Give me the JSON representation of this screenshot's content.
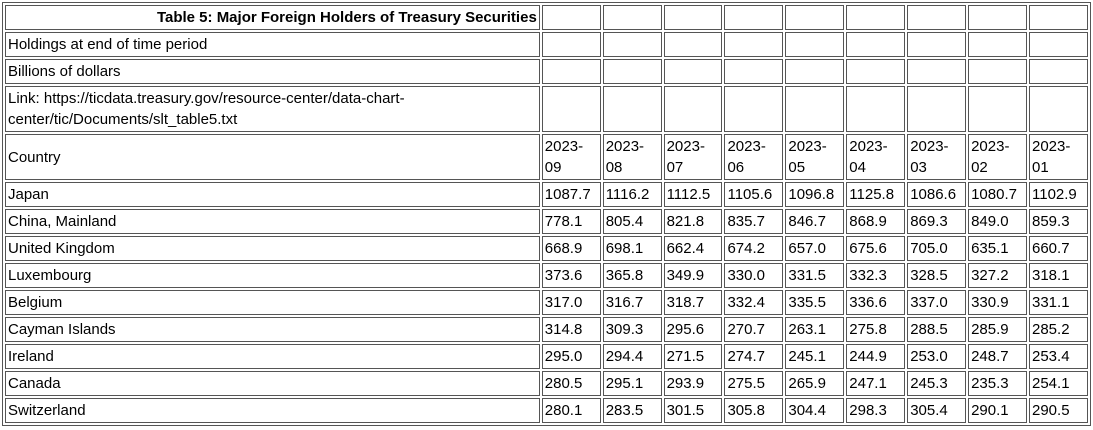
{
  "table": {
    "title": "Table 5: Major Foreign Holders of Treasury Securities",
    "subtitle_period": "Holdings at end of time period",
    "subtitle_units": "Billions of dollars",
    "source_link": "Link: https://ticdata.treasury.gov/resource-center/data-chart-center/tic/Documents/slt_table5.txt",
    "country_header": "Country",
    "periods": [
      "2023-09",
      "2023-08",
      "2023-07",
      "2023-06",
      "2023-05",
      "2023-04",
      "2023-03",
      "2023-02",
      "2023-01"
    ],
    "rows": [
      {
        "country": "Japan",
        "values": [
          "1087.7",
          "1116.2",
          "1112.5",
          "1105.6",
          "1096.8",
          "1125.8",
          "1086.6",
          "1080.7",
          "1102.9"
        ]
      },
      {
        "country": "China, Mainland",
        "values": [
          "778.1",
          "805.4",
          "821.8",
          "835.7",
          "846.7",
          "868.9",
          "869.3",
          "849.0",
          "859.3"
        ]
      },
      {
        "country": "United Kingdom",
        "values": [
          "668.9",
          "698.1",
          "662.4",
          "674.2",
          "657.0",
          "675.6",
          "705.0",
          "635.1",
          "660.7"
        ]
      },
      {
        "country": "Luxembourg",
        "values": [
          "373.6",
          "365.8",
          "349.9",
          "330.0",
          "331.5",
          "332.3",
          "328.5",
          "327.2",
          "318.1"
        ]
      },
      {
        "country": "Belgium",
        "values": [
          "317.0",
          "316.7",
          "318.7",
          "332.4",
          "335.5",
          "336.6",
          "337.0",
          "330.9",
          "331.1"
        ]
      },
      {
        "country": "Cayman Islands",
        "values": [
          "314.8",
          "309.3",
          "295.6",
          "270.7",
          "263.1",
          "275.8",
          "288.5",
          "285.9",
          "285.2"
        ]
      },
      {
        "country": "Ireland",
        "values": [
          "295.0",
          "294.4",
          "271.5",
          "274.7",
          "245.1",
          "244.9",
          "253.0",
          "248.7",
          "253.4"
        ]
      },
      {
        "country": "Canada",
        "values": [
          "280.5",
          "295.1",
          "293.9",
          "275.5",
          "265.9",
          "247.1",
          "245.3",
          "235.3",
          "254.1"
        ]
      },
      {
        "country": "Switzerland",
        "values": [
          "280.1",
          "283.5",
          "301.5",
          "305.8",
          "304.4",
          "298.3",
          "305.4",
          "290.1",
          "290.5"
        ]
      }
    ]
  },
  "chart_data": {
    "type": "table",
    "title": "Table 5: Major Foreign Holders of Treasury Securities",
    "categories": [
      "2023-09",
      "2023-08",
      "2023-07",
      "2023-06",
      "2023-05",
      "2023-04",
      "2023-03",
      "2023-02",
      "2023-01"
    ],
    "series": [
      {
        "name": "Japan",
        "values": [
          1087.7,
          1116.2,
          1112.5,
          1105.6,
          1096.8,
          1125.8,
          1086.6,
          1080.7,
          1102.9
        ]
      },
      {
        "name": "China, Mainland",
        "values": [
          778.1,
          805.4,
          821.8,
          835.7,
          846.7,
          868.9,
          869.3,
          849.0,
          859.3
        ]
      },
      {
        "name": "United Kingdom",
        "values": [
          668.9,
          698.1,
          662.4,
          674.2,
          657.0,
          675.6,
          705.0,
          635.1,
          660.7
        ]
      },
      {
        "name": "Luxembourg",
        "values": [
          373.6,
          365.8,
          349.9,
          330.0,
          331.5,
          332.3,
          328.5,
          327.2,
          318.1
        ]
      },
      {
        "name": "Belgium",
        "values": [
          317.0,
          316.7,
          318.7,
          332.4,
          335.5,
          336.6,
          337.0,
          330.9,
          331.1
        ]
      },
      {
        "name": "Cayman Islands",
        "values": [
          314.8,
          309.3,
          295.6,
          270.7,
          263.1,
          275.8,
          288.5,
          285.9,
          285.2
        ]
      },
      {
        "name": "Ireland",
        "values": [
          295.0,
          294.4,
          271.5,
          274.7,
          245.1,
          244.9,
          253.0,
          248.7,
          253.4
        ]
      },
      {
        "name": "Canada",
        "values": [
          280.5,
          295.1,
          293.9,
          275.5,
          265.9,
          247.1,
          245.3,
          235.3,
          254.1
        ]
      },
      {
        "name": "Switzerland",
        "values": [
          280.1,
          283.5,
          301.5,
          305.8,
          304.4,
          298.3,
          305.4,
          290.1,
          290.5
        ]
      }
    ],
    "ylabel": "Billions of dollars"
  },
  "colors": {
    "border": "#555555",
    "text": "#000000",
    "page_background": "#ffffff"
  }
}
